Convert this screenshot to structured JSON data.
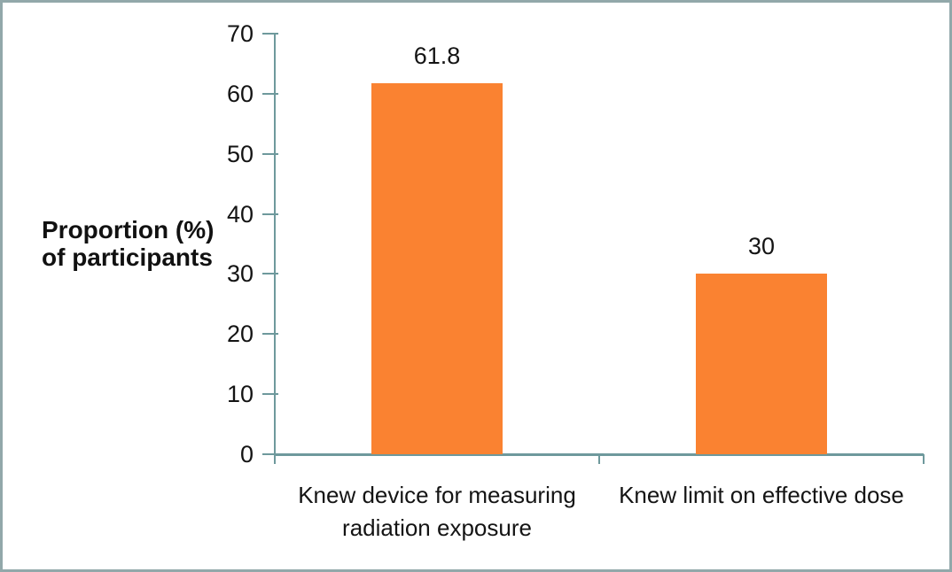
{
  "chart_data": {
    "type": "bar",
    "categories": [
      "Knew device for measuring radiation exposure",
      "Knew limit on effective dose"
    ],
    "values": [
      61.8,
      30
    ],
    "value_labels": [
      "61.8",
      "30"
    ],
    "title": "",
    "xlabel": "",
    "ylabel": "Proportion (%) of participants",
    "ylabel_lines": [
      "Proportion (%)",
      "of participants"
    ],
    "ylim": [
      0,
      70
    ],
    "ytick_step": 10,
    "ytick_labels": [
      "0",
      "10",
      "20",
      "30",
      "40",
      "50",
      "60",
      "70"
    ],
    "grid": false,
    "legend": "none",
    "bar_color": "#fa8231",
    "axis_color": "#6e999c",
    "frame_border_color": "#92a8aa",
    "text_color": "#141414"
  }
}
